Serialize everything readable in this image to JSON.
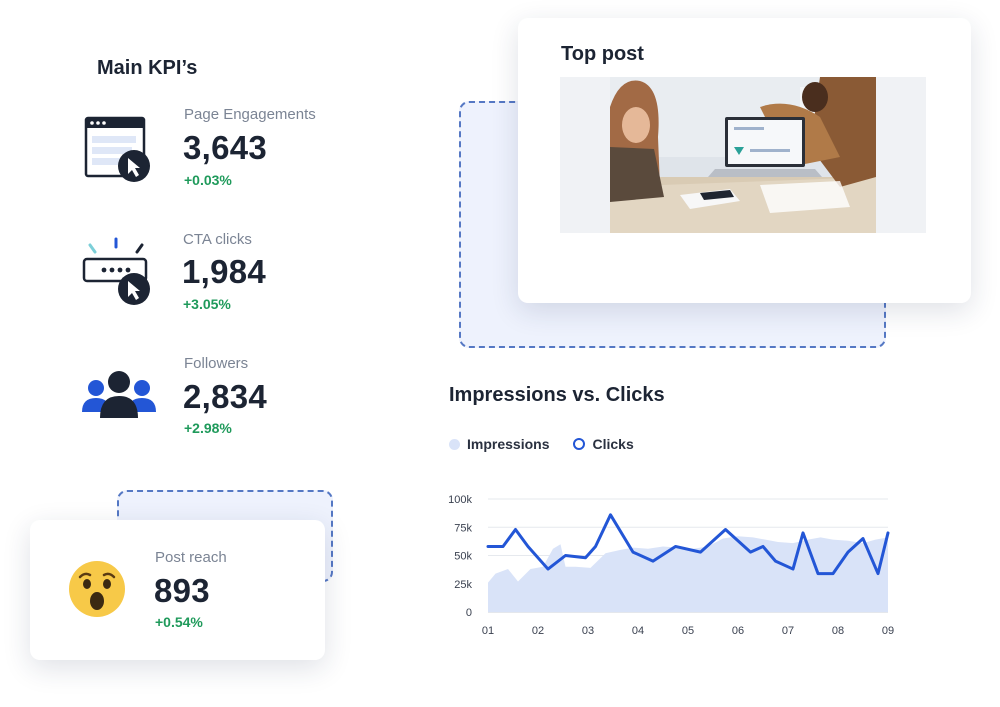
{
  "kpis": {
    "title": "Main KPI’s",
    "items": [
      {
        "label": "Page Engagements",
        "value": "3,643",
        "delta": "+0.03%",
        "icon": "browser-cursor-icon"
      },
      {
        "label": "CTA clicks",
        "value": "1,984",
        "delta": "+3.05%",
        "icon": "button-click-icon"
      },
      {
        "label": "Followers",
        "value": "2,834",
        "delta": "+2.98%",
        "icon": "users-group-icon"
      }
    ]
  },
  "post_reach": {
    "label": "Post reach",
    "value": "893",
    "delta": "+0.54%",
    "icon": "surprised-emoji-icon"
  },
  "top_post": {
    "title": "Top post",
    "image": "meeting-laptop-photo"
  },
  "colors": {
    "accent": "#2356d6",
    "area": "#d9e3f8",
    "positive": "#1f9a5b",
    "text": "#1c2433",
    "muted": "#7b8494"
  },
  "chart_data": {
    "type": "line",
    "title": "Impressions vs. Clicks",
    "legend_position": "top-left",
    "grid": true,
    "x_labels": [
      "01",
      "02",
      "03",
      "04",
      "05",
      "06",
      "07",
      "08",
      "09"
    ],
    "y_ticks": [
      "0",
      "25k",
      "50k",
      "75k",
      "100k"
    ],
    "ylim": [
      0,
      100000
    ],
    "xlim": [
      1,
      9
    ],
    "series": [
      {
        "name": "Impressions",
        "type": "area",
        "x": [
          1,
          1.15,
          1.4,
          1.6,
          1.85,
          2.1,
          2.3,
          2.45,
          2.55,
          2.75,
          3.05,
          3.35,
          3.65,
          3.9,
          4.2,
          4.5,
          4.8,
          5.1,
          5.4,
          5.7,
          6.0,
          6.3,
          6.55,
          6.8,
          7.1,
          7.4,
          7.65,
          7.9,
          8.2,
          8.5,
          8.75,
          9.0
        ],
        "y": [
          26000,
          34000,
          38000,
          27000,
          38000,
          40000,
          56000,
          60000,
          40000,
          40000,
          39000,
          52000,
          55000,
          57000,
          56000,
          58000,
          57000,
          56000,
          58000,
          65000,
          67000,
          66000,
          64000,
          62000,
          61000,
          64000,
          66000,
          64000,
          63000,
          61000,
          64000,
          66000
        ]
      },
      {
        "name": "Clicks",
        "type": "line",
        "x": [
          1,
          1.3,
          1.55,
          1.8,
          2.2,
          2.55,
          2.95,
          3.15,
          3.45,
          3.9,
          4.3,
          4.75,
          5.25,
          5.75,
          6.25,
          6.5,
          6.75,
          7.1,
          7.3,
          7.6,
          7.9,
          8.2,
          8.5,
          8.8,
          9.0
        ],
        "y": [
          58000,
          58000,
          73000,
          58000,
          38000,
          50000,
          48000,
          58000,
          86000,
          53000,
          45000,
          58000,
          53000,
          73000,
          53000,
          58000,
          45000,
          38000,
          70000,
          34000,
          34000,
          53000,
          65000,
          34000,
          70000
        ]
      }
    ]
  }
}
